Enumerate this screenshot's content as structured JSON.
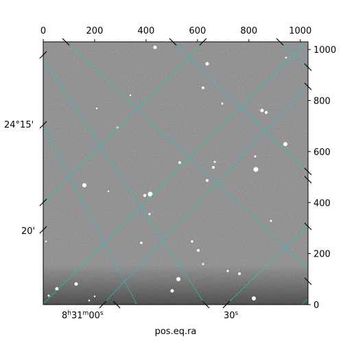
{
  "figure": {
    "x_axis_label": "pos.eq.ra",
    "pixel_x_ticks": [
      "0",
      "200",
      "400",
      "600",
      "800",
      "1000"
    ],
    "pixel_y_ticks": [
      "0",
      "200",
      "400",
      "600",
      "800",
      "1000"
    ],
    "ra_ticks": [
      "8h31m00s",
      "30s"
    ],
    "dec_ticks": [
      "24°15'",
      "20'"
    ],
    "image_pixel_extent": {
      "x": [
        0,
        1030
      ],
      "y": [
        0,
        1030
      ]
    }
  },
  "colors": {
    "grid": "#21c6c6",
    "background_sky": "#707070",
    "frame": "#000000"
  }
}
